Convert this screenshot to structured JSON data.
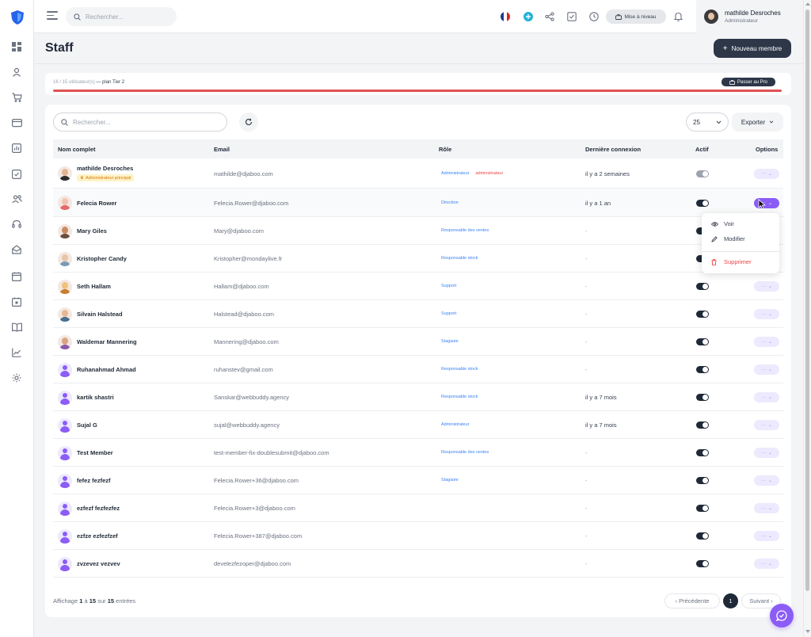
{
  "topbar": {
    "search_placeholder": "Rechercher...",
    "upgrade_label": "Mise à niveau",
    "user": {
      "name": "mathilde Desroches",
      "role": "Administrateur"
    }
  },
  "page": {
    "title": "Staff",
    "new_member_label": "Nouveau membre"
  },
  "plan": {
    "usage": "16 / 15 utilisateur(s)",
    "plan_label": "— plan Tier 2",
    "pro_label": "Passer au Pro"
  },
  "table": {
    "search_placeholder": "Rechercher...",
    "per_page": "25",
    "export_label": "Exporter",
    "columns": [
      "Nom complet",
      "Email",
      "Rôle",
      "Dernière connexion",
      "Actif",
      "Options"
    ],
    "option_label": "···",
    "rows": [
      {
        "name": "mathilde Desroches",
        "badge": "Administrateur principal",
        "email": "mathilde@djaboo.com",
        "role": "Administrateur",
        "role2": "administrateur",
        "last": "il y a 2 semaines",
        "active": false
      },
      {
        "name": "Felecia Rower",
        "email": "Felecia.Rower@djaboo.com",
        "role": "Direction",
        "last": "il y a 1 an",
        "active": true
      },
      {
        "name": "Mary Giles",
        "email": "Mary@djaboo.com",
        "role": "Responsable des ventes",
        "last": "-",
        "active": true
      },
      {
        "name": "Kristopher Candy",
        "email": "Kristopher@mondaylive.fr",
        "role": "Responsable stock",
        "last": "-",
        "active": true
      },
      {
        "name": "Seth Hallam",
        "email": "Hallam@djaboo.com",
        "role": "Support",
        "last": "-",
        "active": true
      },
      {
        "name": "Silvain Halstead",
        "email": "Halstead@djaboo.com",
        "role": "Support",
        "last": "-",
        "active": true
      },
      {
        "name": "Waldemar Mannering",
        "email": "Mannering@djaboo.com",
        "role": "Stagiaire",
        "last": "-",
        "active": true
      },
      {
        "name": "Ruhanahmad Ahmad",
        "email": "ruhanstev@gmail.com",
        "role": "Responsable stock",
        "last": "-",
        "active": true
      },
      {
        "name": "kartik shastri",
        "email": "Sanskar@webbuddy.agency",
        "role": "Responsable stock",
        "last": "il y a 7 mois",
        "active": true
      },
      {
        "name": "Sujal G",
        "email": "sujal@webbuddy.agency",
        "role": "Administrateur",
        "last": "il y a 7 mois",
        "active": true
      },
      {
        "name": "Test Member",
        "email": "test-member-fix-doublesubmit@djaboo.com",
        "role": "Responsable des ventes",
        "last": "-",
        "active": true
      },
      {
        "name": "fefez fezfezf",
        "email": "Felecia.Rower+36@djaboo.com",
        "role": "Stagiaire",
        "last": "-",
        "active": true
      },
      {
        "name": "ezfezf fezfezfez",
        "email": "Felecia.Rower+3@djaboo.com",
        "role": "",
        "last": "-",
        "active": true
      },
      {
        "name": "ezfze ezfezfzef",
        "email": "Felecia.Rower+387@djaboo.com",
        "role": "",
        "last": "-",
        "active": true
      },
      {
        "name": "zvzevez vezvev",
        "email": "develezfezoper@djaboo.com",
        "role": "",
        "last": "-",
        "active": true
      }
    ]
  },
  "menu": {
    "view": "Voir",
    "edit": "Modifier",
    "delete": "Supprimer"
  },
  "footer": {
    "prefix": "Affichage",
    "from": "1",
    "to": "15",
    "total": "15",
    "word_to": "à",
    "word_of": "sur",
    "word_entries": "entrées",
    "prev": "‹ Précédente",
    "page": "1",
    "next": "Suivant ›"
  },
  "colors": {
    "accent": "#8b5cf6",
    "dark": "#2d3748",
    "danger": "#e05252",
    "role_blue": "#3b82f6"
  }
}
